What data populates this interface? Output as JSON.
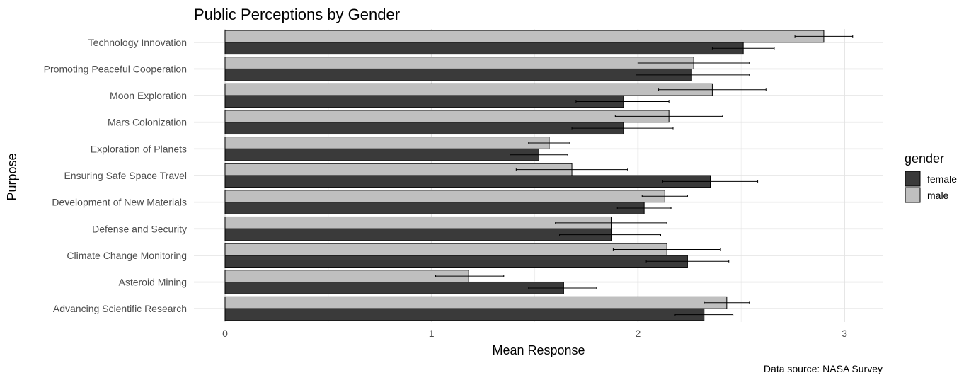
{
  "chart_data": {
    "type": "bar",
    "orientation": "horizontal",
    "title": "Public Perceptions by Gender",
    "xlabel": "Mean Response",
    "ylabel": "Purpose",
    "caption": "Data source: NASA Survey",
    "xlim": [
      0,
      3.2
    ],
    "xticks": [
      0,
      1,
      2,
      3
    ],
    "grid": true,
    "legend": {
      "title": "gender",
      "position": "right"
    },
    "categories": [
      "Technology Innovation",
      "Promoting Peaceful Cooperation",
      "Moon Exploration",
      "Mars Colonization",
      "Exploration of Planets",
      "Ensuring Safe Space Travel",
      "Development of New Materials",
      "Defense and Security",
      "Climate Change Monitoring",
      "Asteroid Mining",
      "Advancing Scientific Research"
    ],
    "series": [
      {
        "name": "male",
        "color": "#bfbfbf",
        "values": [
          2.9,
          2.27,
          2.36,
          2.15,
          1.57,
          1.68,
          2.13,
          1.87,
          2.14,
          1.18,
          2.43
        ],
        "error_low": [
          2.76,
          2.0,
          2.1,
          1.89,
          1.47,
          1.41,
          2.02,
          1.6,
          1.88,
          1.02,
          2.32
        ],
        "error_high": [
          3.04,
          2.54,
          2.62,
          2.41,
          1.67,
          1.95,
          2.24,
          2.14,
          2.4,
          1.35,
          2.54
        ]
      },
      {
        "name": "female",
        "color": "#3a3a3a",
        "values": [
          2.51,
          2.26,
          1.93,
          1.93,
          1.52,
          2.35,
          2.03,
          1.87,
          2.24,
          1.64,
          2.32
        ],
        "error_low": [
          2.36,
          1.99,
          1.7,
          1.68,
          1.38,
          2.12,
          1.9,
          1.62,
          2.04,
          1.47,
          2.18
        ],
        "error_high": [
          2.66,
          2.54,
          2.15,
          2.17,
          1.66,
          2.58,
          2.16,
          2.11,
          2.44,
          1.8,
          2.46
        ]
      }
    ]
  }
}
